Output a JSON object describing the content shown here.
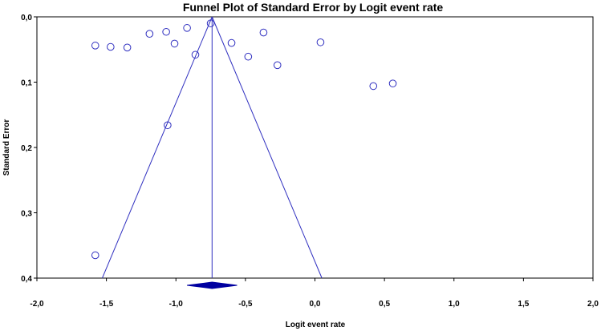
{
  "chart_data": {
    "type": "scatter",
    "title": "Funnel Plot of Standard Error by Logit event rate",
    "xlabel": "Logit event rate",
    "ylabel": "Standard Error",
    "xlim": [
      -2.0,
      2.0
    ],
    "ylim": [
      0.0,
      0.4
    ],
    "y_inverted": true,
    "x_ticks": [
      "-2,0",
      "-1,5",
      "-1,0",
      "-0,5",
      "0,0",
      "0,5",
      "1,0",
      "1,5",
      "2,0"
    ],
    "x_tick_values": [
      -2.0,
      -1.5,
      -1.0,
      -0.5,
      0.0,
      0.5,
      1.0,
      1.5,
      2.0
    ],
    "y_ticks": [
      "0,0",
      "0,1",
      "0,2",
      "0,3",
      "0,4"
    ],
    "y_tick_values": [
      0.0,
      0.1,
      0.2,
      0.3,
      0.4
    ],
    "grid": false,
    "colors": {
      "points": "#3030c0",
      "funnel": "#3030c0",
      "diamond": "#0000a0",
      "axes": "#000000"
    },
    "points": [
      {
        "x": -1.58,
        "y": 0.044
      },
      {
        "x": -1.47,
        "y": 0.046
      },
      {
        "x": -1.35,
        "y": 0.047
      },
      {
        "x": -1.19,
        "y": 0.026
      },
      {
        "x": -1.07,
        "y": 0.023
      },
      {
        "x": -1.01,
        "y": 0.041
      },
      {
        "x": -0.92,
        "y": 0.017
      },
      {
        "x": -0.86,
        "y": 0.058
      },
      {
        "x": -0.75,
        "y": 0.01
      },
      {
        "x": -0.6,
        "y": 0.04
      },
      {
        "x": -0.48,
        "y": 0.061
      },
      {
        "x": -0.37,
        "y": 0.024
      },
      {
        "x": -0.27,
        "y": 0.074
      },
      {
        "x": 0.04,
        "y": 0.039
      },
      {
        "x": 0.42,
        "y": 0.106
      },
      {
        "x": 0.56,
        "y": 0.102
      },
      {
        "x": -1.06,
        "y": 0.166
      },
      {
        "x": -1.58,
        "y": 0.365
      }
    ],
    "funnel": {
      "apex": {
        "x": -0.74,
        "y": 0.0
      },
      "bottom_left": {
        "x": -1.53,
        "y": 0.4
      },
      "bottom_right": {
        "x": 0.05,
        "y": 0.4
      }
    },
    "summary": {
      "estimate": -0.74,
      "ci_low": -0.92,
      "ci_high": -0.56
    }
  }
}
